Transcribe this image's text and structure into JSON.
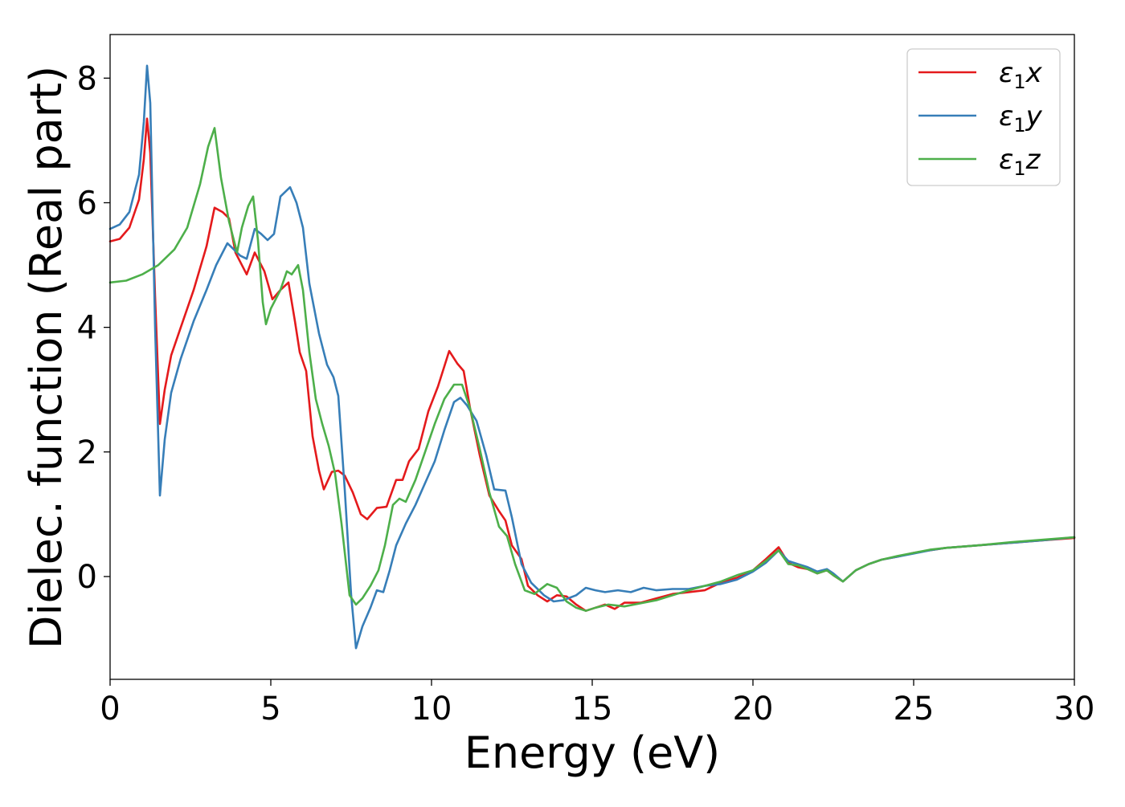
{
  "chart_data": {
    "type": "line",
    "xlabel": "Energy (eV)",
    "ylabel": "Dielec. function (Real part)",
    "xlim": [
      0,
      30
    ],
    "ylim": [
      -1.65,
      8.7
    ],
    "xticks": [
      0,
      5,
      10,
      15,
      20,
      25,
      30
    ],
    "yticks": [
      0,
      2,
      4,
      6,
      8
    ],
    "grid": false,
    "legend_position": "top-right",
    "series": [
      {
        "name": "ε1x",
        "legend_main": "ε",
        "legend_sub": "1",
        "legend_tail": "x",
        "color": "#e41a1c",
        "points": [
          [
            0,
            5.38
          ],
          [
            0.3,
            5.42
          ],
          [
            0.6,
            5.6
          ],
          [
            0.9,
            6.05
          ],
          [
            1.05,
            6.7
          ],
          [
            1.15,
            7.35
          ],
          [
            1.25,
            6.8
          ],
          [
            1.4,
            4.5
          ],
          [
            1.55,
            2.45
          ],
          [
            1.7,
            3.0
          ],
          [
            1.9,
            3.55
          ],
          [
            2.2,
            4.0
          ],
          [
            2.6,
            4.6
          ],
          [
            3.0,
            5.3
          ],
          [
            3.25,
            5.92
          ],
          [
            3.5,
            5.85
          ],
          [
            3.7,
            5.75
          ],
          [
            3.9,
            5.2
          ],
          [
            4.05,
            5.05
          ],
          [
            4.25,
            4.85
          ],
          [
            4.5,
            5.2
          ],
          [
            4.8,
            4.9
          ],
          [
            5.05,
            4.45
          ],
          [
            5.3,
            4.6
          ],
          [
            5.55,
            4.72
          ],
          [
            5.75,
            4.1
          ],
          [
            5.9,
            3.6
          ],
          [
            6.1,
            3.3
          ],
          [
            6.3,
            2.25
          ],
          [
            6.5,
            1.7
          ],
          [
            6.65,
            1.4
          ],
          [
            6.9,
            1.68
          ],
          [
            7.1,
            1.7
          ],
          [
            7.3,
            1.62
          ],
          [
            7.55,
            1.35
          ],
          [
            7.8,
            1.0
          ],
          [
            8.0,
            0.92
          ],
          [
            8.3,
            1.1
          ],
          [
            8.6,
            1.12
          ],
          [
            8.9,
            1.55
          ],
          [
            9.1,
            1.55
          ],
          [
            9.3,
            1.85
          ],
          [
            9.6,
            2.05
          ],
          [
            9.9,
            2.65
          ],
          [
            10.2,
            3.05
          ],
          [
            10.55,
            3.62
          ],
          [
            10.8,
            3.42
          ],
          [
            11.0,
            3.3
          ],
          [
            11.2,
            2.7
          ],
          [
            11.5,
            1.95
          ],
          [
            11.8,
            1.3
          ],
          [
            12.1,
            1.05
          ],
          [
            12.3,
            0.9
          ],
          [
            12.5,
            0.5
          ],
          [
            12.8,
            0.28
          ],
          [
            13.0,
            -0.15
          ],
          [
            13.3,
            -0.3
          ],
          [
            13.6,
            -0.4
          ],
          [
            13.9,
            -0.3
          ],
          [
            14.2,
            -0.32
          ],
          [
            14.5,
            -0.45
          ],
          [
            14.8,
            -0.55
          ],
          [
            15.1,
            -0.5
          ],
          [
            15.4,
            -0.45
          ],
          [
            15.7,
            -0.52
          ],
          [
            16.0,
            -0.42
          ],
          [
            16.5,
            -0.42
          ],
          [
            17.0,
            -0.35
          ],
          [
            17.5,
            -0.28
          ],
          [
            18.0,
            -0.25
          ],
          [
            18.5,
            -0.22
          ],
          [
            19.0,
            -0.1
          ],
          [
            19.5,
            -0.02
          ],
          [
            20.0,
            0.1
          ],
          [
            20.4,
            0.28
          ],
          [
            20.8,
            0.47
          ],
          [
            21.1,
            0.22
          ],
          [
            21.4,
            0.15
          ],
          [
            21.7,
            0.12
          ],
          [
            22.0,
            0.05
          ],
          [
            22.3,
            0.1
          ],
          [
            22.5,
            0.02
          ],
          [
            22.8,
            -0.08
          ],
          [
            23.2,
            0.1
          ],
          [
            23.6,
            0.2
          ],
          [
            24.0,
            0.27
          ],
          [
            24.5,
            0.32
          ],
          [
            25,
            0.38
          ],
          [
            25.5,
            0.42
          ],
          [
            26,
            0.46
          ],
          [
            27,
            0.5
          ],
          [
            28,
            0.54
          ],
          [
            29,
            0.58
          ],
          [
            30,
            0.62
          ]
        ]
      },
      {
        "name": "ε1y",
        "legend_main": "ε",
        "legend_sub": "1",
        "legend_tail": "y",
        "color": "#377eb8",
        "points": [
          [
            0,
            5.58
          ],
          [
            0.3,
            5.65
          ],
          [
            0.6,
            5.85
          ],
          [
            0.9,
            6.45
          ],
          [
            1.05,
            7.3
          ],
          [
            1.15,
            8.2
          ],
          [
            1.25,
            7.6
          ],
          [
            1.4,
            4.0
          ],
          [
            1.55,
            1.3
          ],
          [
            1.7,
            2.2
          ],
          [
            1.9,
            2.95
          ],
          [
            2.2,
            3.5
          ],
          [
            2.6,
            4.1
          ],
          [
            3.0,
            4.6
          ],
          [
            3.3,
            5.0
          ],
          [
            3.65,
            5.35
          ],
          [
            3.85,
            5.25
          ],
          [
            4.05,
            5.15
          ],
          [
            4.25,
            5.1
          ],
          [
            4.5,
            5.58
          ],
          [
            4.7,
            5.5
          ],
          [
            4.9,
            5.4
          ],
          [
            5.1,
            5.5
          ],
          [
            5.3,
            6.1
          ],
          [
            5.6,
            6.25
          ],
          [
            5.8,
            6.0
          ],
          [
            6.0,
            5.6
          ],
          [
            6.2,
            4.7
          ],
          [
            6.5,
            3.9
          ],
          [
            6.75,
            3.4
          ],
          [
            6.95,
            3.2
          ],
          [
            7.1,
            2.9
          ],
          [
            7.3,
            1.4
          ],
          [
            7.5,
            -0.3
          ],
          [
            7.65,
            -1.15
          ],
          [
            7.85,
            -0.8
          ],
          [
            8.1,
            -0.5
          ],
          [
            8.3,
            -0.22
          ],
          [
            8.5,
            -0.25
          ],
          [
            8.7,
            0.1
          ],
          [
            8.9,
            0.5
          ],
          [
            9.2,
            0.85
          ],
          [
            9.5,
            1.15
          ],
          [
            9.8,
            1.5
          ],
          [
            10.1,
            1.85
          ],
          [
            10.4,
            2.35
          ],
          [
            10.7,
            2.8
          ],
          [
            10.9,
            2.87
          ],
          [
            11.1,
            2.75
          ],
          [
            11.4,
            2.5
          ],
          [
            11.7,
            1.95
          ],
          [
            11.95,
            1.4
          ],
          [
            12.3,
            1.38
          ],
          [
            12.5,
            0.95
          ],
          [
            12.8,
            0.2
          ],
          [
            13.1,
            -0.1
          ],
          [
            13.5,
            -0.3
          ],
          [
            13.8,
            -0.4
          ],
          [
            14.1,
            -0.38
          ],
          [
            14.5,
            -0.3
          ],
          [
            14.8,
            -0.18
          ],
          [
            15.1,
            -0.22
          ],
          [
            15.4,
            -0.25
          ],
          [
            15.8,
            -0.22
          ],
          [
            16.2,
            -0.25
          ],
          [
            16.6,
            -0.18
          ],
          [
            17.0,
            -0.22
          ],
          [
            17.5,
            -0.2
          ],
          [
            18.0,
            -0.2
          ],
          [
            18.5,
            -0.15
          ],
          [
            19.0,
            -0.12
          ],
          [
            19.5,
            -0.05
          ],
          [
            20.0,
            0.08
          ],
          [
            20.4,
            0.22
          ],
          [
            20.8,
            0.42
          ],
          [
            21.1,
            0.25
          ],
          [
            21.4,
            0.2
          ],
          [
            21.7,
            0.15
          ],
          [
            22.0,
            0.08
          ],
          [
            22.3,
            0.12
          ],
          [
            22.5,
            0.05
          ],
          [
            22.8,
            -0.08
          ],
          [
            23.2,
            0.1
          ],
          [
            23.6,
            0.2
          ],
          [
            24.0,
            0.27
          ],
          [
            24.5,
            0.32
          ],
          [
            25,
            0.37
          ],
          [
            25.5,
            0.42
          ],
          [
            26,
            0.46
          ],
          [
            27,
            0.5
          ],
          [
            28,
            0.54
          ],
          [
            29,
            0.58
          ],
          [
            30,
            0.63
          ]
        ]
      },
      {
        "name": "ε1z",
        "legend_main": "ε",
        "legend_sub": "1",
        "legend_tail": "z",
        "color": "#4daf4a",
        "points": [
          [
            0,
            4.72
          ],
          [
            0.5,
            4.75
          ],
          [
            1.0,
            4.85
          ],
          [
            1.5,
            5.0
          ],
          [
            2.0,
            5.25
          ],
          [
            2.4,
            5.6
          ],
          [
            2.8,
            6.3
          ],
          [
            3.05,
            6.9
          ],
          [
            3.25,
            7.2
          ],
          [
            3.45,
            6.4
          ],
          [
            3.7,
            5.7
          ],
          [
            3.95,
            5.2
          ],
          [
            4.1,
            5.6
          ],
          [
            4.3,
            5.95
          ],
          [
            4.45,
            6.1
          ],
          [
            4.6,
            5.4
          ],
          [
            4.75,
            4.4
          ],
          [
            4.85,
            4.05
          ],
          [
            5.0,
            4.3
          ],
          [
            5.3,
            4.6
          ],
          [
            5.5,
            4.9
          ],
          [
            5.65,
            4.85
          ],
          [
            5.85,
            5.0
          ],
          [
            6.0,
            4.6
          ],
          [
            6.2,
            3.6
          ],
          [
            6.4,
            2.85
          ],
          [
            6.6,
            2.45
          ],
          [
            6.8,
            2.1
          ],
          [
            7.0,
            1.65
          ],
          [
            7.2,
            0.85
          ],
          [
            7.45,
            -0.3
          ],
          [
            7.65,
            -0.45
          ],
          [
            7.85,
            -0.35
          ],
          [
            8.1,
            -0.15
          ],
          [
            8.35,
            0.1
          ],
          [
            8.55,
            0.5
          ],
          [
            8.8,
            1.15
          ],
          [
            9.0,
            1.25
          ],
          [
            9.2,
            1.2
          ],
          [
            9.5,
            1.55
          ],
          [
            9.8,
            2.0
          ],
          [
            10.1,
            2.45
          ],
          [
            10.4,
            2.85
          ],
          [
            10.7,
            3.08
          ],
          [
            10.95,
            3.08
          ],
          [
            11.2,
            2.7
          ],
          [
            11.5,
            2.05
          ],
          [
            11.8,
            1.35
          ],
          [
            12.1,
            0.8
          ],
          [
            12.35,
            0.65
          ],
          [
            12.6,
            0.2
          ],
          [
            12.9,
            -0.22
          ],
          [
            13.2,
            -0.28
          ],
          [
            13.6,
            -0.12
          ],
          [
            13.9,
            -0.18
          ],
          [
            14.2,
            -0.4
          ],
          [
            14.5,
            -0.5
          ],
          [
            14.8,
            -0.55
          ],
          [
            15.1,
            -0.5
          ],
          [
            15.5,
            -0.45
          ],
          [
            16.0,
            -0.48
          ],
          [
            16.5,
            -0.43
          ],
          [
            17.0,
            -0.38
          ],
          [
            17.5,
            -0.3
          ],
          [
            18.0,
            -0.22
          ],
          [
            18.5,
            -0.15
          ],
          [
            19.0,
            -0.08
          ],
          [
            19.5,
            0.02
          ],
          [
            20.0,
            0.1
          ],
          [
            20.4,
            0.25
          ],
          [
            20.8,
            0.42
          ],
          [
            21.1,
            0.2
          ],
          [
            21.4,
            0.18
          ],
          [
            21.7,
            0.12
          ],
          [
            22.0,
            0.05
          ],
          [
            22.3,
            0.1
          ],
          [
            22.5,
            0.02
          ],
          [
            22.8,
            -0.08
          ],
          [
            23.2,
            0.1
          ],
          [
            23.6,
            0.2
          ],
          [
            24.0,
            0.27
          ],
          [
            24.5,
            0.33
          ],
          [
            25,
            0.38
          ],
          [
            25.5,
            0.43
          ],
          [
            26,
            0.46
          ],
          [
            27,
            0.5
          ],
          [
            28,
            0.55
          ],
          [
            29,
            0.59
          ],
          [
            30,
            0.63
          ]
        ]
      }
    ]
  }
}
